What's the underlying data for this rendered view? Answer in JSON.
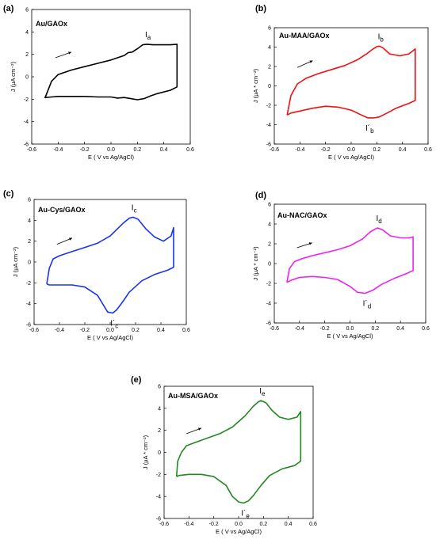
{
  "chart_data": [
    {
      "type": "line",
      "letter": "(a)",
      "title": "Au/GAOx",
      "xlabel": "E ( V vs Ag/AgCl)",
      "ylabel": "J (μA cm⁻²)",
      "xlim": [
        -0.6,
        0.6
      ],
      "ylim": [
        -6,
        6
      ],
      "xticks": [
        "-0.6",
        "-0.4",
        "-0.2",
        "0.0",
        "0.2",
        "0.4",
        "0.6"
      ],
      "yticks": [
        "-6",
        "-4",
        "-2",
        "0",
        "2",
        "4",
        "6"
      ],
      "color": "#000000",
      "anodic_peak": {
        "label": "I",
        "sub": "a",
        "E": 0.27,
        "J": 2.9
      },
      "cathodic_peak": null,
      "series": [
        {
          "x": [
            -0.5,
            -0.45,
            -0.4,
            -0.3,
            -0.2,
            -0.1,
            0,
            0.1,
            0.13,
            0.16,
            0.2,
            0.24,
            0.27,
            0.32,
            0.4,
            0.45,
            0.5,
            0.5,
            0.5,
            0.45,
            0.35,
            0.3,
            0.25,
            0.2,
            0.15,
            0.1,
            0.05,
            0,
            -0.1,
            -0.2,
            -0.3,
            -0.4,
            -0.45,
            -0.5,
            -0.5
          ],
          "y": [
            -1.9,
            -0.4,
            0.2,
            0.6,
            0.9,
            1.2,
            1.5,
            1.9,
            2.15,
            2.2,
            2.5,
            2.85,
            2.9,
            2.85,
            2.85,
            2.85,
            2.9,
            0.5,
            -0.9,
            -1.2,
            -1.5,
            -1.7,
            -1.95,
            -2.05,
            -1.95,
            -1.85,
            -1.9,
            -1.8,
            -1.8,
            -1.75,
            -1.75,
            -1.75,
            -1.8,
            -1.85,
            -1.9
          ]
        }
      ]
    },
    {
      "type": "line",
      "letter": "(b)",
      "title": "Au-MAA/GAOx",
      "xlabel": "E ( V vs Ag/AgCl)",
      "ylabel": "J (μA * cm⁻²)",
      "xlim": [
        -0.6,
        0.6
      ],
      "ylim": [
        -6,
        6
      ],
      "xticks": [
        "-0.6",
        "-0.4",
        "-0.2",
        "0.0",
        "0.2",
        "0.4",
        "0.6"
      ],
      "yticks": [
        "-6",
        "-4",
        "-2",
        "0",
        "2",
        "4",
        "6"
      ],
      "color": "#ee1111",
      "anodic_peak": {
        "label": "I",
        "sub": "b",
        "E": 0.22,
        "J": 4.1
      },
      "cathodic_peak": {
        "label": "I´",
        "sub": "b",
        "E": 0.13,
        "J": -3.3
      },
      "series": [
        {
          "x": [
            -0.5,
            -0.47,
            -0.42,
            -0.35,
            -0.25,
            -0.15,
            -0.05,
            0.05,
            0.12,
            0.17,
            0.2,
            0.22,
            0.25,
            0.3,
            0.38,
            0.45,
            0.5,
            0.5,
            0.5,
            0.45,
            0.35,
            0.28,
            0.22,
            0.18,
            0.13,
            0.08,
            0.0,
            -0.1,
            -0.2,
            -0.3,
            -0.4,
            -0.47,
            -0.5
          ],
          "y": [
            -3.0,
            -1.0,
            0.2,
            0.8,
            1.3,
            1.7,
            2.1,
            2.7,
            3.3,
            3.8,
            4.05,
            4.1,
            3.9,
            3.3,
            3.1,
            3.3,
            3.8,
            1.0,
            -1.5,
            -1.8,
            -2.3,
            -2.8,
            -3.2,
            -3.3,
            -3.3,
            -3.0,
            -2.5,
            -2.2,
            -2.1,
            -2.3,
            -2.6,
            -2.8,
            -3.0
          ]
        }
      ]
    },
    {
      "type": "line",
      "letter": "(c)",
      "title": "Au-Cys/GAOx",
      "xlabel": "E ( V vs Ag/AgCl)",
      "ylabel": "J (μA cm⁻²)",
      "xlim": [
        -0.6,
        0.6
      ],
      "ylim": [
        -6,
        6
      ],
      "xticks": [
        "-0.6",
        "-0.4",
        "-0.2",
        "0.0",
        "0.2",
        "0.4",
        "0.6"
      ],
      "yticks": [
        "-6",
        "-4",
        "-2",
        "0",
        "2",
        "4",
        "6"
      ],
      "color": "#1a33ee",
      "anodic_peak": {
        "label": "I",
        "sub": "c",
        "E": 0.18,
        "J": 4.3
      },
      "cathodic_peak": {
        "label": "I´",
        "sub": "c",
        "E": 0.02,
        "J": -4.9
      },
      "series": [
        {
          "x": [
            -0.5,
            -0.48,
            -0.45,
            -0.4,
            -0.3,
            -0.2,
            -0.1,
            0,
            0.05,
            0.1,
            0.15,
            0.18,
            0.22,
            0.28,
            0.35,
            0.42,
            0.48,
            0.5,
            0.5,
            0.45,
            0.35,
            0.25,
            0.15,
            0.1,
            0.05,
            0.02,
            -0.02,
            -0.06,
            -0.1,
            -0.2,
            -0.3,
            -0.4,
            -0.48,
            -0.5
          ],
          "y": [
            -2.1,
            -0.6,
            0.3,
            0.6,
            1.0,
            1.4,
            1.8,
            2.5,
            3.1,
            3.7,
            4.2,
            4.3,
            4.1,
            3.2,
            2.4,
            2.0,
            2.5,
            3.3,
            -0.5,
            -0.8,
            -1.2,
            -1.8,
            -2.9,
            -3.8,
            -4.6,
            -4.9,
            -4.8,
            -4.0,
            -3.2,
            -2.4,
            -2.2,
            -2.2,
            -2.2,
            -2.1
          ]
        }
      ]
    },
    {
      "type": "line",
      "letter": "(d)",
      "title": "Au-NAC/GAOx",
      "xlabel": "E ( V vs Ag/AgCl)",
      "ylabel": "J (μA * cm⁻²)",
      "xlim": [
        -0.6,
        0.6
      ],
      "ylim": [
        -6,
        6
      ],
      "xticks": [
        "-0.6",
        "-0.4",
        "-0.2",
        "0.0",
        "0.2",
        "0.4",
        "0.6"
      ],
      "yticks": [
        "-6",
        "-4",
        "-2",
        "0",
        "2",
        "4",
        "6"
      ],
      "color": "#ee22ee",
      "anodic_peak": {
        "label": "I",
        "sub": "d",
        "E": 0.22,
        "J": 3.6
      },
      "cathodic_peak": {
        "label": "I´",
        "sub": "d",
        "E": 0.12,
        "J": -3.0
      },
      "series": [
        {
          "x": [
            -0.5,
            -0.48,
            -0.44,
            -0.38,
            -0.3,
            -0.2,
            -0.1,
            0,
            0.1,
            0.16,
            0.2,
            0.22,
            0.26,
            0.32,
            0.4,
            0.47,
            0.5,
            0.5,
            0.5,
            0.45,
            0.35,
            0.25,
            0.18,
            0.12,
            0.06,
            0,
            -0.1,
            -0.2,
            -0.3,
            -0.4,
            -0.47,
            -0.5
          ],
          "y": [
            -1.9,
            -0.5,
            0.2,
            0.5,
            0.8,
            1.1,
            1.4,
            1.8,
            2.5,
            3.2,
            3.5,
            3.6,
            3.4,
            2.8,
            2.6,
            2.6,
            2.7,
            0.8,
            -0.7,
            -1.0,
            -1.5,
            -2.1,
            -2.7,
            -3.0,
            -2.9,
            -2.3,
            -1.6,
            -1.4,
            -1.3,
            -1.4,
            -1.7,
            -1.9
          ]
        }
      ]
    },
    {
      "type": "line",
      "letter": "(e)",
      "title": "Au-MSA/GAOx",
      "xlabel": "E ( V vs Ag/AgCl)",
      "ylabel": "J (μA * cm⁻²)",
      "xlim": [
        -0.6,
        0.6
      ],
      "ylim": [
        -6,
        6
      ],
      "xticks": [
        "-0.6",
        "-0.4",
        "-0.2",
        "0.0",
        "0.2",
        "0.4",
        "0.6"
      ],
      "yticks": [
        "-6",
        "-4",
        "-2",
        "0",
        "2",
        "4",
        "6"
      ],
      "color": "#228822",
      "anodic_peak": {
        "label": "I",
        "sub": "e",
        "E": 0.18,
        "J": 4.7
      },
      "cathodic_peak": {
        "label": "I´",
        "sub": "e",
        "E": 0.04,
        "J": -4.6
      },
      "series": [
        {
          "x": [
            -0.5,
            -0.49,
            -0.46,
            -0.42,
            -0.35,
            -0.25,
            -0.15,
            -0.05,
            0.05,
            0.12,
            0.16,
            0.18,
            0.22,
            0.27,
            0.33,
            0.4,
            0.47,
            0.5,
            0.5,
            0.5,
            0.45,
            0.35,
            0.25,
            0.18,
            0.12,
            0.08,
            0.04,
            0,
            -0.05,
            -0.1,
            -0.2,
            -0.3,
            -0.4,
            -0.48,
            -0.5
          ],
          "y": [
            -2.2,
            -0.8,
            0.0,
            0.6,
            0.9,
            1.3,
            1.7,
            2.3,
            3.3,
            4.2,
            4.6,
            4.7,
            4.5,
            3.8,
            3.2,
            3.0,
            3.2,
            3.7,
            1.5,
            -0.8,
            -1.2,
            -1.5,
            -2.1,
            -3.0,
            -3.9,
            -4.4,
            -4.6,
            -4.5,
            -4.0,
            -3.0,
            -2.2,
            -2.0,
            -2.0,
            -2.1,
            -2.2
          ]
        }
      ]
    }
  ]
}
